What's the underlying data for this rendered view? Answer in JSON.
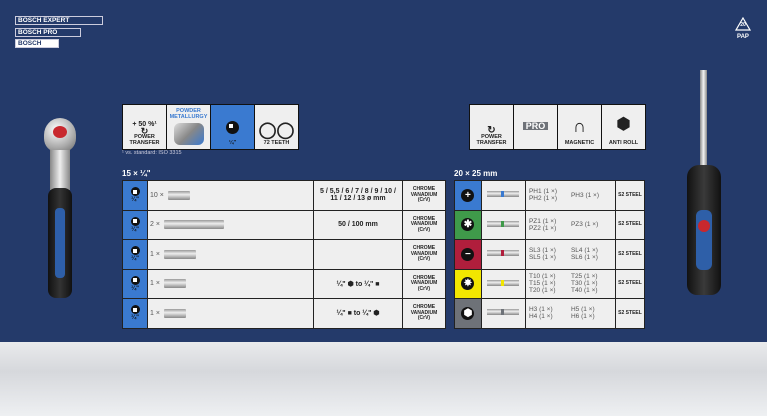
{
  "brands": [
    "BOSCH EXPERT",
    "BOSCH PRO",
    "BOSCH"
  ],
  "recycle": {
    "number": "20",
    "code": "PAP"
  },
  "left_features": [
    {
      "top": "+ 50 %¹",
      "label": "POWER TRANSFER"
    },
    {
      "top": "POWDER METALLURGY",
      "label": ""
    },
    {
      "label": "¼\""
    },
    {
      "label": "72 TEETH"
    }
  ],
  "footnote": "¹ vs. standard: ISO 3315",
  "right_features": [
    {
      "label": "POWER TRANSFER"
    },
    {
      "label": "PRO"
    },
    {
      "label": "MAGNETIC"
    },
    {
      "label": "ANTI ROLL"
    }
  ],
  "left_table": {
    "title": "15 × ¼\"",
    "drive": "¼\"",
    "rows": [
      {
        "qty": "10 ×",
        "size": "5 / 5,5 / 6 / 7 / 8 / 9 / 10 / 11 / 12 / 13 ø mm",
        "material": "CHROME VANADIUM (CrV)"
      },
      {
        "qty": "2 ×",
        "size": "50 / 100 mm",
        "material": "CHROME VANADIUM (CrV)"
      },
      {
        "qty": "1 ×",
        "size": "",
        "material": "CHROME VANADIUM (CrV)"
      },
      {
        "qty": "1 ×",
        "size": "¼\" ⬢ to ¼\" ■",
        "material": "CHROME VANADIUM (CrV)"
      },
      {
        "qty": "1 ×",
        "size": "¼\" ■ to ¼\" ⬢",
        "material": "CHROME VANADIUM (CrV)"
      }
    ]
  },
  "right_table": {
    "title": "20 × 25 mm",
    "rows": [
      {
        "color": "#3a7ad0",
        "glyph": "+",
        "a": [
          [
            "PH1",
            "(1 ×)"
          ],
          [
            "PH2",
            "(1 ×)"
          ]
        ],
        "b": [
          [
            "PH3",
            "(1 ×)"
          ]
        ],
        "material": "S2 STEEL"
      },
      {
        "color": "#3f9a4a",
        "glyph": "✱",
        "a": [
          [
            "PZ1",
            "(1 ×)"
          ],
          [
            "PZ2",
            "(1 ×)"
          ]
        ],
        "b": [
          [
            "PZ3",
            "(1 ×)"
          ]
        ],
        "material": "S2 STEEL"
      },
      {
        "color": "#b01e3c",
        "glyph": "−",
        "a": [
          [
            "SL3",
            "(1 ×)"
          ],
          [
            "SL5",
            "(1 ×)"
          ]
        ],
        "b": [
          [
            "SL4",
            "(1 ×)"
          ],
          [
            "SL6",
            "(1 ×)"
          ]
        ],
        "material": "S2 STEEL"
      },
      {
        "color": "#f2e600",
        "glyph": "✸",
        "a": [
          [
            "T10",
            "(1 ×)"
          ],
          [
            "T15",
            "(1 ×)"
          ],
          [
            "T20",
            "(1 ×)"
          ]
        ],
        "b": [
          [
            "T25",
            "(1 ×)"
          ],
          [
            "T30",
            "(1 ×)"
          ],
          [
            "T40",
            "(1 ×)"
          ]
        ],
        "material": "S2 STEEL"
      },
      {
        "color": "#6e7278",
        "glyph": "⬢",
        "a": [
          [
            "H3",
            "(1 ×)"
          ],
          [
            "H4",
            "(1 ×)"
          ]
        ],
        "b": [
          [
            "H5",
            "(1 ×)"
          ],
          [
            "H6",
            "(1 ×)"
          ]
        ],
        "material": "S2 STEEL"
      }
    ]
  }
}
